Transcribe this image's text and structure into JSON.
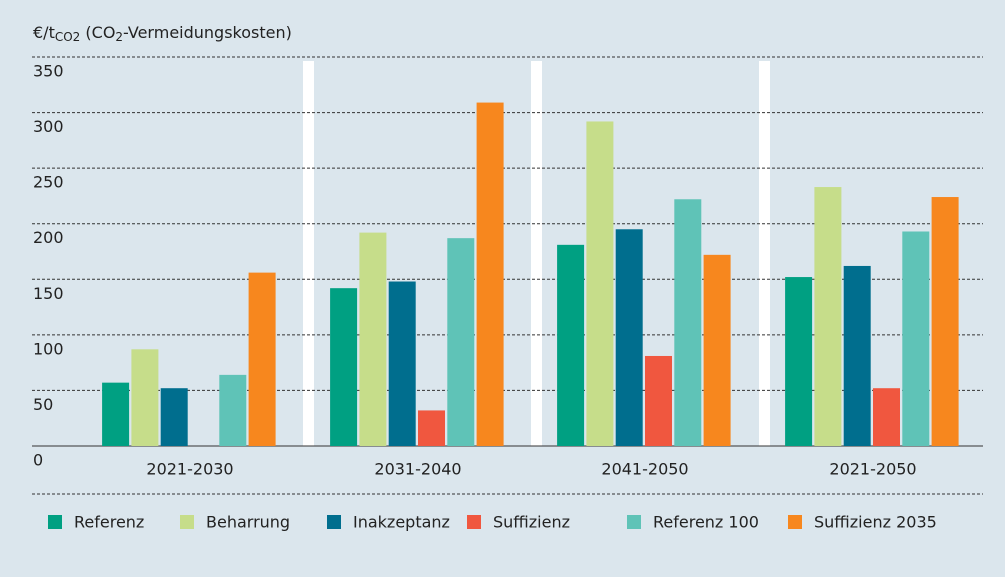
{
  "chart_data": {
    "type": "bar",
    "y_label_parts": [
      {
        "text": "€/t"
      },
      {
        "text": "CO2",
        "sub": true
      },
      {
        "text": "   (CO"
      },
      {
        "text": "2",
        "sub": true
      },
      {
        "text": "-Vermeidungskosten)"
      }
    ],
    "categories": [
      "2021-2030",
      "2031-2040",
      "2041-2050",
      "2021-2050"
    ],
    "series": [
      {
        "name": "Referenz",
        "color": "#00a082",
        "values": [
          57,
          142,
          181,
          152
        ]
      },
      {
        "name": "Beharrung",
        "color": "#c6dd8a",
        "values": [
          87,
          192,
          292,
          233
        ]
      },
      {
        "name": "Inakzeptanz",
        "color": "#006e8e",
        "values": [
          52,
          148,
          195,
          162
        ]
      },
      {
        "name": "Suffizienz",
        "color": "#f0573f",
        "values": [
          null,
          32,
          81,
          52
        ]
      },
      {
        "name": "Referenz 100",
        "color": "#5fc3b7",
        "values": [
          64,
          187,
          222,
          193
        ]
      },
      {
        "name": "Suffizienz 2035",
        "color": "#f7871e",
        "values": [
          156,
          309,
          172,
          224
        ]
      }
    ],
    "ylim": [
      0,
      350
    ],
    "yticks": [
      0,
      50,
      100,
      150,
      200,
      250,
      300,
      350
    ],
    "grid": true
  }
}
